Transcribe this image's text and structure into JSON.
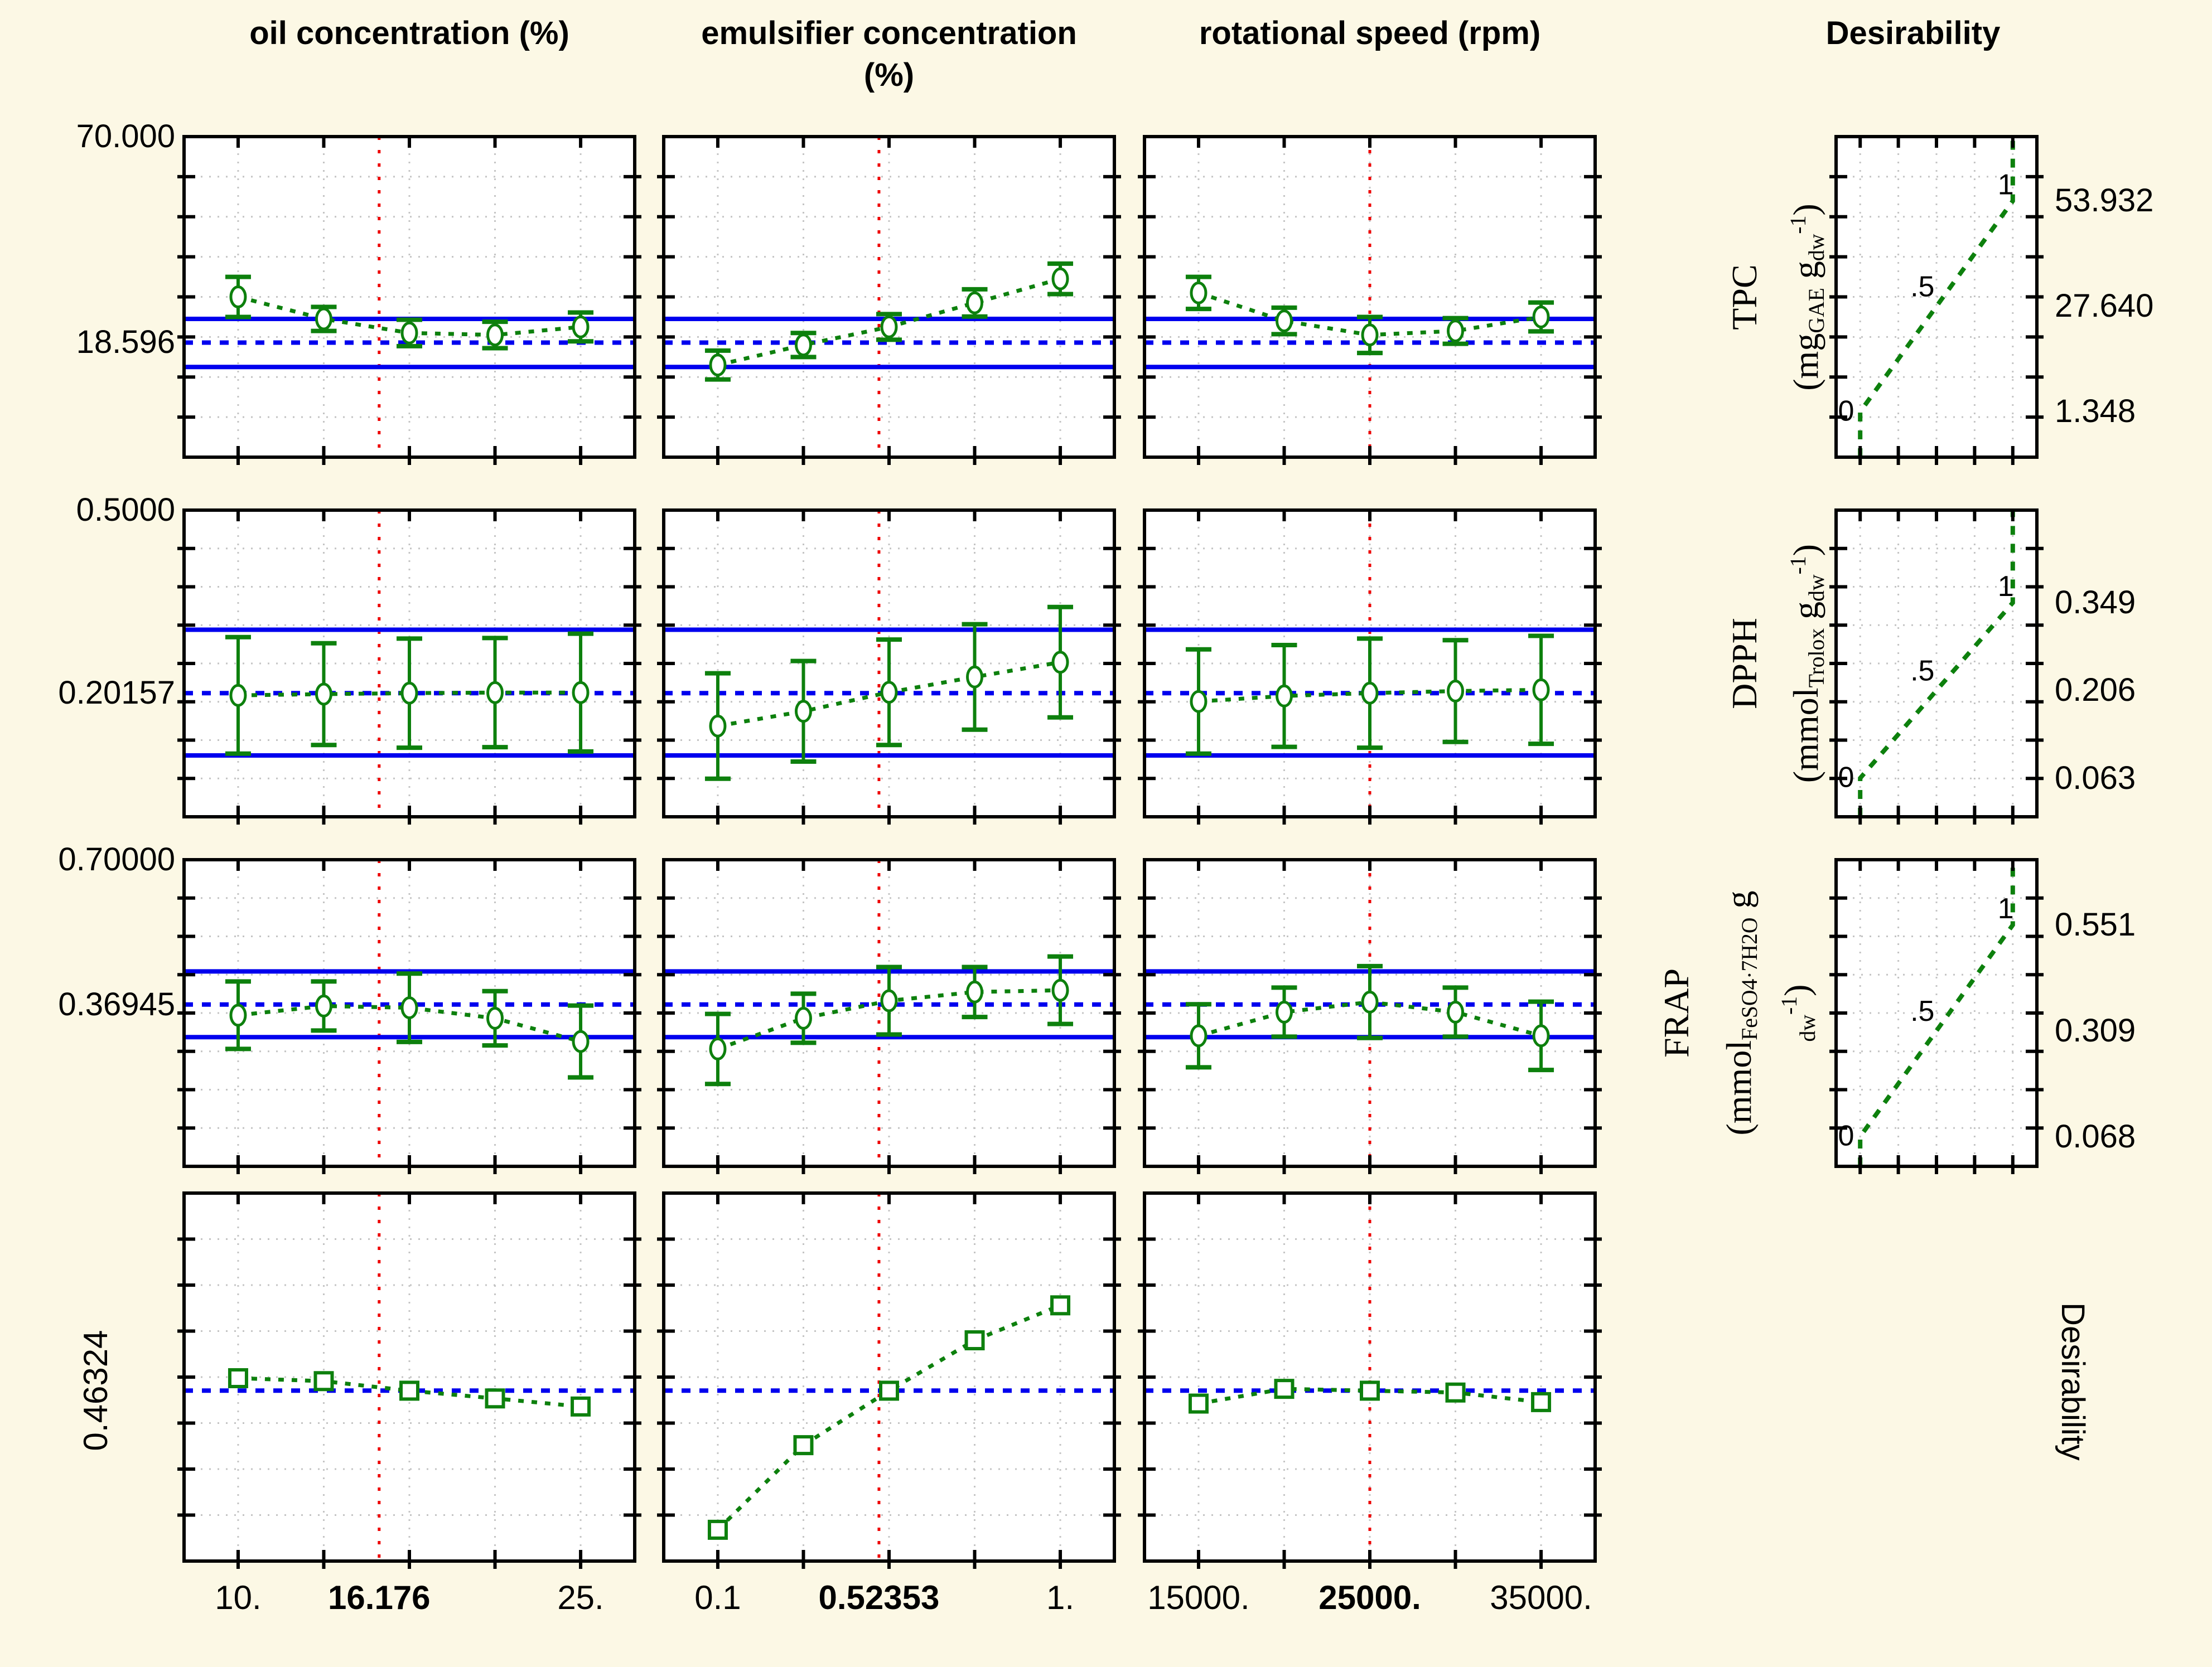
{
  "header": {
    "col1_title": "oil concentration (%)",
    "col2_title_line1": "emulsifier concentration",
    "col2_title_line2": "(%)",
    "col3_title": "rotational speed (rpm)",
    "col4_title": "Desirability"
  },
  "labels": {
    "bottom_right": "Desirability",
    "curve_labels": [
      "0",
      ".5",
      "1"
    ]
  },
  "colors": {
    "background": "#fcf8e5",
    "plot_bg": "#ffffff",
    "frame": "#000000",
    "grid": "#c4c4c4",
    "profile_green": "#0d800d",
    "interval_blue": "#0000ee",
    "current_red": "#ee0000",
    "text": "#000000"
  },
  "chart_data": {
    "type": "line",
    "subtype": "prediction-profiler-with-desirability",
    "grid": true,
    "legend_position": "none",
    "factors": [
      {
        "name": "oil concentration (%)",
        "levels": [
          10,
          13.75,
          17.5,
          21.25,
          25
        ],
        "current": 16.176,
        "tick_labels": [
          "10.",
          "16.176",
          "25."
        ],
        "tick_values": [
          10,
          16.176,
          25
        ]
      },
      {
        "name": "emulsifier concentration (%)",
        "levels": [
          0.1,
          0.325,
          0.55,
          0.775,
          1.0
        ],
        "current": 0.52353,
        "tick_labels": [
          "0.1",
          "0.52353",
          "1."
        ],
        "tick_values": [
          0.1,
          0.52353,
          1.0
        ]
      },
      {
        "name": "rotational speed (rpm)",
        "levels": [
          15000,
          20000,
          25000,
          30000,
          35000
        ],
        "current": 25000,
        "tick_labels": [
          "15000.",
          "25000.",
          "35000."
        ],
        "tick_values": [
          15000,
          25000,
          35000
        ]
      }
    ],
    "responses": [
      {
        "name": "TPC",
        "unit_lines": [
          [
            [
              "t",
              "(mg"
            ],
            [
              "sub",
              "GAE"
            ],
            [
              "t",
              " g"
            ],
            [
              "sub",
              "dw"
            ],
            [
              "sup",
              "-1"
            ],
            [
              "t",
              ")"
            ]
          ]
        ],
        "ylim": [
          -10,
          70
        ],
        "ymax_label": "70.000",
        "predicted": 18.596,
        "predicted_label": "18.596",
        "ci": [
          12.5,
          24.5
        ],
        "desirability_anchors": {
          "values": [
            53.932,
            27.64,
            1.348
          ],
          "labels": [
            "53.932",
            "27.640",
            "1.348"
          ]
        },
        "profiles": [
          {
            "factor": "oil concentration (%)",
            "y": [
              30,
              24.5,
              21,
              20.5,
              22.5
            ],
            "err": [
              5,
              3,
              3.3,
              3.3,
              3.6
            ]
          },
          {
            "factor": "emulsifier concentration (%)",
            "y": [
              13,
              18,
              22.5,
              28.5,
              34.5
            ],
            "err": [
              3.6,
              3,
              3.2,
              3.4,
              3.8
            ]
          },
          {
            "factor": "rotational speed (rpm)",
            "y": [
              31,
              24,
              20.5,
              21.5,
              25
            ],
            "err": [
              4,
              3.3,
              4.5,
              3.2,
              3.6
            ]
          }
        ]
      },
      {
        "name": "DPPH",
        "unit_lines": [
          [
            [
              "t",
              "(mmol"
            ],
            [
              "sub",
              "Trolox"
            ],
            [
              "t",
              " g"
            ],
            [
              "sub",
              "dw"
            ],
            [
              "sup",
              "-1"
            ],
            [
              "t",
              ")"
            ]
          ]
        ],
        "ylim": [
          0,
          0.5
        ],
        "ymax_label": "0.5000",
        "predicted": 0.20157,
        "predicted_label": "0.20157",
        "ci": [
          0.1,
          0.305
        ],
        "desirability_anchors": {
          "values": [
            0.349,
            0.206,
            0.063
          ],
          "labels": [
            "0.349",
            "0.206",
            "0.063"
          ]
        },
        "profiles": [
          {
            "factor": "oil concentration (%)",
            "y": [
              0.198,
              0.2,
              0.2016,
              0.2025,
              0.2025
            ],
            "err": [
              0.095,
              0.083,
              0.089,
              0.089,
              0.096
            ]
          },
          {
            "factor": "emulsifier concentration (%)",
            "y": [
              0.148,
              0.172,
              0.203,
              0.228,
              0.252
            ],
            "err": [
              0.086,
              0.082,
              0.086,
              0.086,
              0.09
            ]
          },
          {
            "factor": "rotational speed (rpm)",
            "y": [
              0.188,
              0.197,
              0.2016,
              0.205,
              0.207
            ],
            "err": [
              0.085,
              0.083,
              0.089,
              0.083,
              0.088
            ]
          }
        ]
      },
      {
        "name": "FRAP",
        "unit_lines": [
          [
            [
              "t",
              "(mmol"
            ],
            [
              "sub",
              "FeSO4·7H2O"
            ],
            [
              "t",
              " g"
            ]
          ],
          [
            [
              "sub",
              "dw"
            ],
            [
              "sup",
              "-1"
            ],
            [
              "t",
              ")"
            ]
          ]
        ],
        "ylim": [
          0,
          0.7
        ],
        "ymax_label": "0.70000",
        "predicted": 0.36945,
        "predicted_label": "0.36945",
        "ci": [
          0.295,
          0.445
        ],
        "desirability_anchors": {
          "values": [
            0.551,
            0.309,
            0.068
          ],
          "labels": [
            "0.551",
            "0.309",
            "0.068"
          ]
        },
        "profiles": [
          {
            "factor": "oil concentration (%)",
            "y": [
              0.345,
              0.366,
              0.362,
              0.338,
              0.285
            ],
            "err": [
              0.077,
              0.056,
              0.078,
              0.062,
              0.082
            ]
          },
          {
            "factor": "emulsifier concentration (%)",
            "y": [
              0.268,
              0.338,
              0.378,
              0.398,
              0.402
            ],
            "err": [
              0.08,
              0.056,
              0.077,
              0.057,
              0.077
            ]
          },
          {
            "factor": "rotational speed (rpm)",
            "y": [
              0.298,
              0.352,
              0.375,
              0.352,
              0.298
            ],
            "err": [
              0.072,
              0.056,
              0.082,
              0.056,
              0.078
            ]
          }
        ]
      }
    ],
    "overall_desirability": {
      "name": "Desirability",
      "ylim": [
        0,
        1
      ],
      "current": 0.46324,
      "current_label": "0.46324",
      "profiles": [
        {
          "factor": "oil concentration (%)",
          "y": [
            0.497,
            0.489,
            0.463,
            0.442,
            0.42
          ]
        },
        {
          "factor": "emulsifier concentration (%)",
          "y": [
            0.085,
            0.315,
            0.463,
            0.6,
            0.695
          ]
        },
        {
          "factor": "rotational speed (rpm)",
          "y": [
            0.428,
            0.468,
            0.463,
            0.458,
            0.432
          ]
        }
      ]
    }
  }
}
